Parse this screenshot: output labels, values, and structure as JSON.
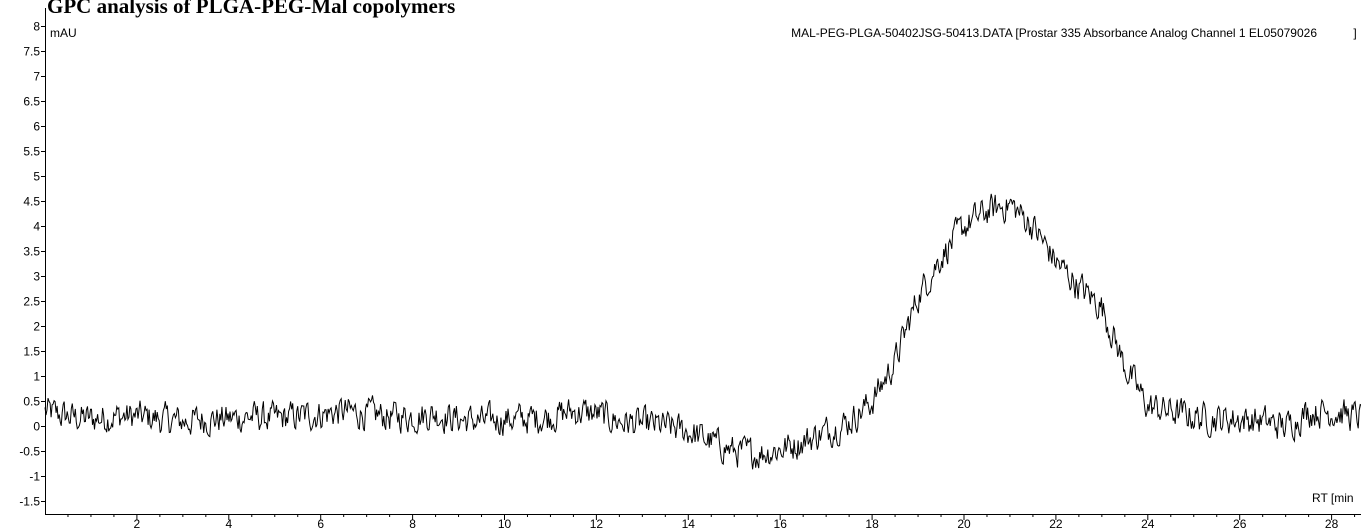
{
  "chart_data": {
    "type": "line",
    "title": "GPC analysis of PLGA-PEG-Mal copolymers",
    "file_label": "MAL-PEG-PLGA-50402JSG-50413.DATA [Prostar 335 Absorbance Analog Channel 1 EL05079026",
    "bracket_label": "]",
    "ylabel": "mAU",
    "xlabel": "RT [min",
    "xlim": [
      0,
      28.7
    ],
    "ylim": [
      -1.75,
      8
    ],
    "x_ticks": [
      2,
      4,
      6,
      8,
      10,
      12,
      14,
      16,
      18,
      20,
      22,
      24,
      26,
      28
    ],
    "y_ticks": [
      -1.5,
      -1,
      -0.5,
      0,
      0.5,
      1,
      1.5,
      2,
      2.5,
      3,
      3.5,
      4,
      4.5,
      5,
      5.5,
      6,
      6.5,
      7,
      7.5,
      8
    ],
    "y_tick_labels": [
      "-1.5",
      "-1",
      "-0.5",
      "0",
      "0.5",
      "1",
      "1.5",
      "2",
      "2.5",
      "3",
      "3.5",
      "4",
      "4.5",
      "5",
      "5.5",
      "6",
      "6.5",
      "7",
      "7.5",
      "8"
    ],
    "grid": false,
    "line_color": "#000000",
    "series": [
      {
        "x": [
          0,
          0.5,
          1,
          1.5,
          2,
          2.5,
          3,
          3.5,
          4,
          4.5,
          5,
          5.5,
          6,
          6.5,
          7,
          7.5,
          8,
          8.5,
          9,
          9.5,
          10,
          10.5,
          11,
          11.5,
          12,
          12.5,
          13,
          13.5,
          14,
          14.5,
          15,
          15.5,
          16,
          16.5,
          17,
          17.5,
          18,
          18.5,
          19,
          19.5,
          20,
          20.5,
          21,
          21.5,
          22,
          22.5,
          23,
          23.5,
          24,
          24.5,
          25,
          25.5,
          26,
          26.5,
          27,
          27.5,
          28,
          28.5,
          28.7
        ],
        "y": [
          0.3,
          0.2,
          0.15,
          0.2,
          0.2,
          0.15,
          0.1,
          0.15,
          0.15,
          0.2,
          0.15,
          0.2,
          0.25,
          0.3,
          0.25,
          0.2,
          0.2,
          0.25,
          0.15,
          0.1,
          0.15,
          0.15,
          0.2,
          0.3,
          0.25,
          0.1,
          0.05,
          0.0,
          -0.1,
          -0.3,
          -0.5,
          -0.55,
          -0.45,
          -0.3,
          -0.1,
          0.1,
          0.5,
          1.3,
          2.6,
          3.4,
          4.0,
          4.3,
          4.45,
          4.0,
          3.3,
          2.8,
          2.4,
          1.2,
          0.4,
          0.3,
          0.2,
          0.15,
          0.15,
          0.1,
          0.0,
          0.3,
          0.3,
          0.2,
          0.2
        ],
        "noise": 0.3
      }
    ]
  }
}
